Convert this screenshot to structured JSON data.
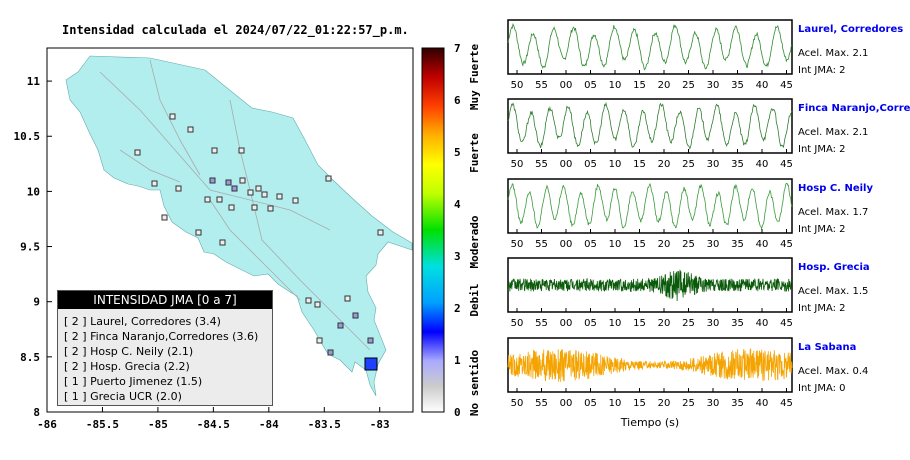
{
  "map": {
    "title": "Intensidad calculada el 2024/07/22_01:22:57_p.m.",
    "x_ticks": [
      "-86",
      "-85.5",
      "-85",
      "-84.5",
      "-84",
      "-83.5",
      "-83"
    ],
    "y_ticks": [
      "11",
      "10.5",
      "10",
      "9.5",
      "9",
      "8.5",
      "8"
    ],
    "xlim": [
      -86,
      -82.7
    ],
    "ylim": [
      8,
      11.3
    ]
  },
  "colorbar": {
    "ticks": [
      "7",
      "6",
      "5",
      "4",
      "3",
      "2",
      "1",
      "0"
    ],
    "labels": [
      "Muy Fuerte",
      "Fuerte",
      "Moderado",
      "Debil",
      "No sentido"
    ]
  },
  "legend": {
    "header": "INTENSIDAD JMA [0 a 7]",
    "items": [
      "[ 2 ]  Laurel, Corredores (3.4)",
      "[ 2 ]  Finca Naranjo,Corredores (3.6)",
      "[ 2 ]  Hosp C. Neily (2.1)",
      "[ 2 ]  Hosp. Grecia (2.2)",
      "[ 1 ]  Puerto Jimenez (1.5)",
      "[ 1 ]  Grecia UCR (2.0)"
    ]
  },
  "waveforms": [
    {
      "name": "Laurel, Corredores",
      "acc": "Acel. Max. 2.1",
      "int": "Int JMA: 2",
      "color": "#2e8b2e"
    },
    {
      "name": "Finca Naranjo,Corredores",
      "acc": "Acel. Max. 2.1",
      "int": "Int JMA: 2",
      "color": "#2e7d2e"
    },
    {
      "name": "Hosp C. Neily",
      "acc": "Acel. Max. 1.7",
      "int": "Int JMA: 2",
      "color": "#3a9a3a"
    },
    {
      "name": "Hosp. Grecia",
      "acc": "Acel. Max. 1.5",
      "int": "Int JMA: 2",
      "color": "#0a5a0a"
    },
    {
      "name": "La Sabana",
      "acc": "Acel. Max. 0.4",
      "int": "Int JMA: 0",
      "color": "#f5a300"
    }
  ],
  "waveform_x_ticks": [
    "50",
    "55",
    "00",
    "05",
    "10",
    "15",
    "20",
    "25",
    "30",
    "35",
    "40",
    "45"
  ],
  "waveform_xlabel": "Tiempo (s)",
  "chart_data": [
    {
      "type": "scatter",
      "title": "Intensidad calculada el 2024/07/22_01:22:57_p.m.",
      "xlim": [
        -86,
        -82.7
      ],
      "ylim": [
        8,
        11.3
      ],
      "legend": "bottom-left",
      "grid": false
    },
    {
      "type": "line",
      "xlabel": "Tiempo (s)",
      "categories": [
        "50",
        "55",
        "00",
        "05",
        "10",
        "15",
        "20",
        "25",
        "30",
        "35",
        "40",
        "45"
      ],
      "series": [
        {
          "name": "Laurel, Corredores"
        },
        {
          "name": "Finca Naranjo,Corredores"
        },
        {
          "name": "Hosp C. Neily"
        },
        {
          "name": "Hosp. Grecia"
        },
        {
          "name": "La Sabana"
        }
      ]
    }
  ]
}
